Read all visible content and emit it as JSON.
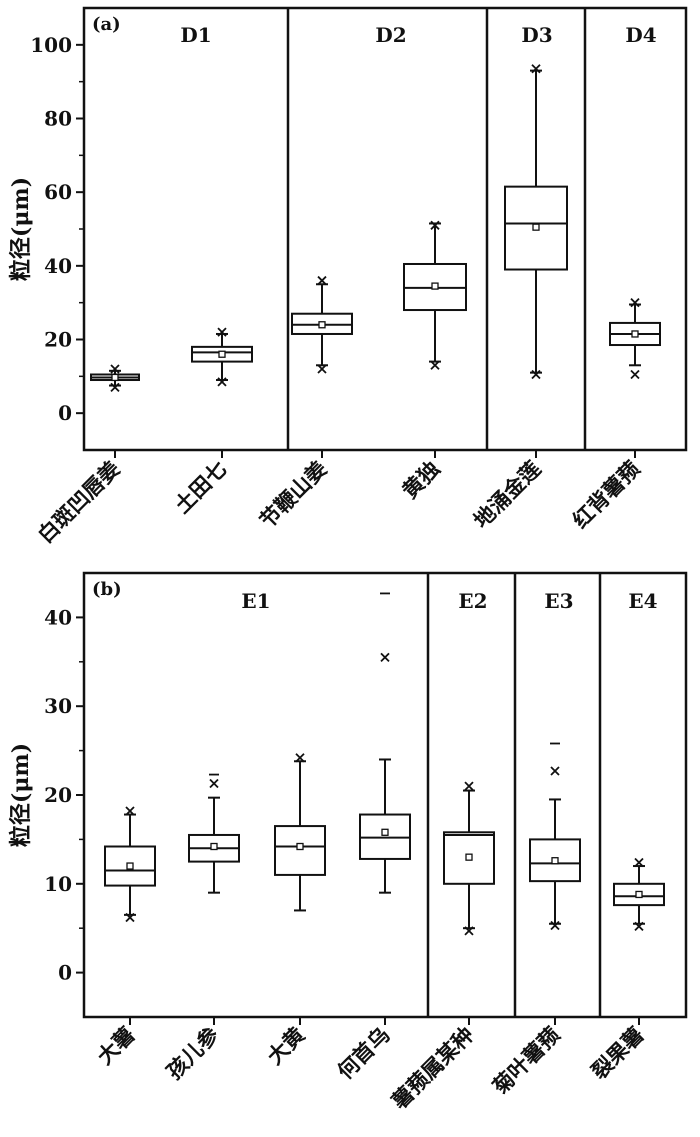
{
  "chart_data": [
    {
      "type": "boxplot",
      "panel_label": "(a)",
      "ylabel": "粒径(μm)",
      "ylim": [
        -10,
        110
      ],
      "yticks": [
        0,
        20,
        40,
        60,
        80,
        100
      ],
      "groups": [
        {
          "label": "D1",
          "categories": [
            "白斑凹唇姜",
            "土田七"
          ]
        },
        {
          "label": "D2",
          "categories": [
            "节鞭山姜",
            "黄独"
          ]
        },
        {
          "label": "D3",
          "categories": [
            "地涌金莲"
          ]
        },
        {
          "label": "D4",
          "categories": [
            "红背薯蓣"
          ]
        }
      ],
      "boxes": [
        {
          "name": "白斑凹唇姜",
          "min": 7.5,
          "q1": 9,
          "median": 9.7,
          "q3": 10.5,
          "max": 11.5,
          "mean": 9.7,
          "outliers_x": [
            7,
            12
          ],
          "outliers_dash": []
        },
        {
          "name": "土田七",
          "min": 9,
          "q1": 14,
          "median": 16.5,
          "q3": 18,
          "max": 21.5,
          "mean": 16,
          "outliers_x": [
            8.5,
            22
          ],
          "outliers_dash": []
        },
        {
          "name": "节鞭山姜",
          "min": 13,
          "q1": 21.5,
          "median": 24,
          "q3": 27,
          "max": 35,
          "mean": 24,
          "outliers_x": [
            12,
            36
          ],
          "outliers_dash": []
        },
        {
          "name": "黄独",
          "min": 14,
          "q1": 28,
          "median": 34,
          "q3": 40.5,
          "max": 51.5,
          "mean": 34.5,
          "outliers_x": [
            13,
            51
          ],
          "outliers_dash": []
        },
        {
          "name": "地涌金莲",
          "min": 11,
          "q1": 39,
          "median": 51.5,
          "q3": 61.5,
          "max": 93,
          "mean": 50.5,
          "outliers_x": [
            93.5,
            10.5
          ],
          "outliers_dash": []
        },
        {
          "name": "红背薯蓣",
          "min": 13,
          "q1": 18.5,
          "median": 21.5,
          "q3": 24.5,
          "max": 29.5,
          "mean": 21.5,
          "outliers_x": [
            10.5,
            30
          ],
          "outliers_dash": []
        }
      ]
    },
    {
      "type": "boxplot",
      "panel_label": "(b)",
      "ylabel": "粒径(μm)",
      "ylim": [
        -5,
        45
      ],
      "yticks": [
        0,
        10,
        20,
        30,
        40
      ],
      "groups": [
        {
          "label": "E1",
          "categories": [
            "大薯",
            "孩儿参",
            "大黄",
            "何首乌"
          ]
        },
        {
          "label": "E2",
          "categories": [
            "薯蓣属某种"
          ]
        },
        {
          "label": "E3",
          "categories": [
            "菊叶薯蓣"
          ]
        },
        {
          "label": "E4",
          "categories": [
            "裂果薯"
          ]
        }
      ],
      "boxes": [
        {
          "name": "大薯",
          "min": 6.5,
          "q1": 9.8,
          "median": 11.5,
          "q3": 14.2,
          "max": 17.8,
          "mean": 12,
          "outliers_x": [
            18.2,
            6.2
          ],
          "outliers_dash": []
        },
        {
          "name": "孩儿参",
          "min": 9,
          "q1": 12.5,
          "median": 14,
          "q3": 15.5,
          "max": 19.7,
          "mean": 14.2,
          "outliers_x": [
            21.3
          ],
          "outliers_dash": [
            22.3
          ]
        },
        {
          "name": "大黄",
          "min": 7,
          "q1": 11,
          "median": 14.2,
          "q3": 16.5,
          "max": 23.8,
          "mean": 14.2,
          "outliers_x": [
            24.2
          ],
          "outliers_dash": []
        },
        {
          "name": "何首乌",
          "min": 9,
          "q1": 12.8,
          "median": 15.2,
          "q3": 17.8,
          "max": 24,
          "mean": 15.8,
          "outliers_x": [
            35.5
          ],
          "outliers_dash": [
            42.7
          ]
        },
        {
          "name": "薯蓣属某种",
          "min": 5,
          "q1": 10,
          "median": 15.5,
          "q3": 15.8,
          "max": 20.5,
          "mean": 13,
          "outliers_x": [
            4.7,
            21
          ],
          "outliers_dash": []
        },
        {
          "name": "菊叶薯蓣",
          "min": 5.5,
          "q1": 10.3,
          "median": 12.3,
          "q3": 15,
          "max": 19.5,
          "mean": 12.6,
          "outliers_x": [
            22.7,
            5.3
          ],
          "outliers_dash": [
            25.8
          ]
        },
        {
          "name": "裂果薯",
          "min": 5.5,
          "q1": 7.6,
          "median": 8.6,
          "q3": 10,
          "max": 12,
          "mean": 8.8,
          "outliers_x": [
            12.4,
            5.2
          ],
          "outliers_dash": []
        }
      ]
    }
  ]
}
